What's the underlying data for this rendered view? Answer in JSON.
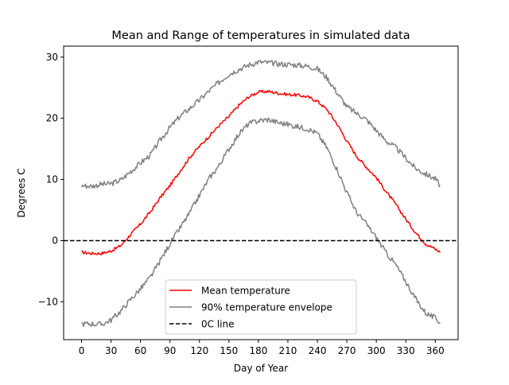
{
  "chart_data": {
    "type": "line",
    "title": "Mean and Range of temperatures in simulated data",
    "xlabel": "Day of Year",
    "ylabel": "Degrees C",
    "xlim": [
      -18.25,
      383.25
    ],
    "ylim": [
      -16.2,
      31.8
    ],
    "xticks": [
      0,
      30,
      60,
      90,
      120,
      150,
      180,
      210,
      240,
      270,
      300,
      330,
      360
    ],
    "xtick_labels": [
      "0",
      "30",
      "60",
      "90",
      "120",
      "150",
      "180",
      "210",
      "240",
      "270",
      "300",
      "330",
      "360"
    ],
    "yticks": [
      -10,
      0,
      10,
      20,
      30
    ],
    "ytick_labels": [
      "−10",
      "0",
      "10",
      "20",
      "30"
    ],
    "grid": false,
    "legend_position": "lower center",
    "reference_line": {
      "name": "0C line",
      "y": 0,
      "color": "#000000",
      "style": "dashed"
    },
    "series": [
      {
        "name": "Mean temperature",
        "color": "#ff0000",
        "x": [
          0,
          10,
          20,
          30,
          40,
          50,
          60,
          70,
          80,
          90,
          100,
          110,
          120,
          130,
          140,
          150,
          160,
          170,
          180,
          190,
          200,
          210,
          220,
          230,
          240,
          250,
          260,
          270,
          280,
          290,
          300,
          310,
          320,
          330,
          340,
          350,
          360,
          365
        ],
        "y": [
          -1.9,
          -2.1,
          -2.1,
          -1.7,
          -0.8,
          1.0,
          2.7,
          4.7,
          7.0,
          9.0,
          11.3,
          13.6,
          15.4,
          17.1,
          18.8,
          20.3,
          22.1,
          23.5,
          24.3,
          24.4,
          24.1,
          23.9,
          23.8,
          23.5,
          22.8,
          21.4,
          19.1,
          16.3,
          13.8,
          12.0,
          10.3,
          8.0,
          5.9,
          3.5,
          1.3,
          -0.5,
          -1.4,
          -1.9
        ]
      },
      {
        "name": "90% temperature envelope",
        "color": "#808080",
        "x": [
          0,
          10,
          20,
          30,
          40,
          50,
          60,
          70,
          80,
          90,
          100,
          110,
          120,
          130,
          140,
          150,
          160,
          170,
          180,
          190,
          200,
          210,
          220,
          230,
          240,
          250,
          260,
          270,
          280,
          290,
          300,
          310,
          320,
          330,
          340,
          350,
          360,
          365
        ],
        "y": [
          9.0,
          8.9,
          9.2,
          9.3,
          9.9,
          11.3,
          12.7,
          14.0,
          16.4,
          18.5,
          20.3,
          21.6,
          23.0,
          24.5,
          25.9,
          27.2,
          28.0,
          28.7,
          29.2,
          29.1,
          28.9,
          28.8,
          28.7,
          28.5,
          28.1,
          26.6,
          24.2,
          21.9,
          20.8,
          19.8,
          18.0,
          16.3,
          15.2,
          13.5,
          11.8,
          10.9,
          10.1,
          9.0
        ]
      },
      {
        "name": "",
        "legend": false,
        "color": "#808080",
        "x": [
          0,
          10,
          20,
          30,
          40,
          50,
          60,
          70,
          80,
          90,
          100,
          110,
          120,
          130,
          140,
          150,
          160,
          170,
          180,
          190,
          200,
          210,
          220,
          230,
          240,
          250,
          260,
          270,
          280,
          290,
          300,
          310,
          320,
          330,
          340,
          350,
          360,
          365
        ],
        "y": [
          -13.6,
          -13.6,
          -13.7,
          -13.0,
          -11.5,
          -9.6,
          -7.9,
          -6.0,
          -3.3,
          -0.5,
          2.0,
          4.5,
          7.4,
          10.2,
          12.3,
          15.0,
          17.4,
          19.1,
          19.6,
          19.8,
          19.3,
          19.0,
          18.6,
          18.3,
          17.5,
          15.1,
          11.7,
          7.9,
          4.6,
          2.7,
          0.5,
          -2.0,
          -4.0,
          -6.7,
          -9.5,
          -11.8,
          -12.7,
          -13.4
        ]
      }
    ],
    "legend": [
      {
        "label": "Mean temperature",
        "color": "#ff0000",
        "style": "solid"
      },
      {
        "label": "90% temperature envelope",
        "color": "#808080",
        "style": "solid"
      },
      {
        "label": "0C line",
        "color": "#000000",
        "style": "dashed"
      }
    ]
  }
}
